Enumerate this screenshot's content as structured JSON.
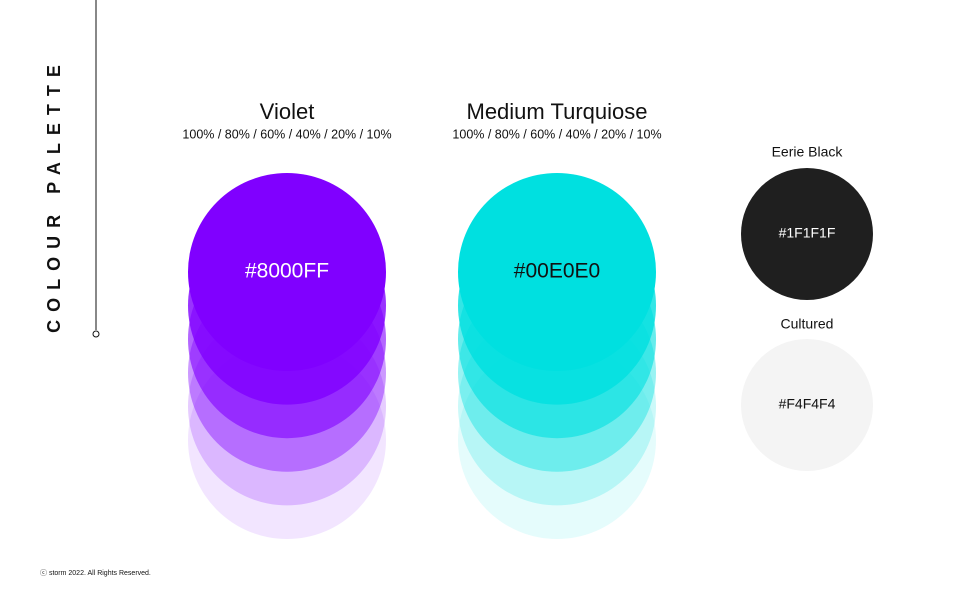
{
  "title": "COLOUR PALETTE",
  "palettes": [
    {
      "name": "Violet",
      "shades": "100% / 80% / 60% / 40% / 20% / 10%",
      "hex": "#8000FF"
    },
    {
      "name": "Medium Turquiose",
      "shades": "100% / 80% / 60% / 40% / 20% / 10%",
      "hex": "#00E0E0"
    },
    {
      "name": "Eerie Black",
      "hex": "#1F1F1F"
    },
    {
      "name": "Cultured",
      "hex": "#F4F4F4"
    }
  ],
  "footer": "ⓒ storm 2022. All Rights Reserved."
}
